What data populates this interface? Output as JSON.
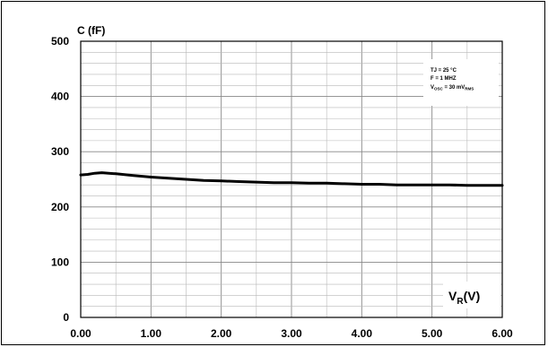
{
  "chart_data": {
    "type": "line",
    "title": "",
    "ylabel": "C (fF)",
    "xlabel": {
      "main": "V",
      "sub": "R",
      "rest": "(V)"
    },
    "xlim": [
      0,
      6
    ],
    "ylim": [
      0,
      500
    ],
    "x_ticks": [
      "0.00",
      "1.00",
      "2.00",
      "3.00",
      "4.00",
      "5.00",
      "6.00"
    ],
    "y_ticks": [
      "0",
      "100",
      "200",
      "300",
      "400",
      "500"
    ],
    "grid": true,
    "legend": {
      "placement": "top-right",
      "lines": [
        {
          "text": "TJ = 25 °C"
        },
        {
          "text": "F = 1 MHZ"
        },
        {
          "main": "V",
          "sub": "OSC",
          "mid": " = 30 mV",
          "sub2": "RMS"
        }
      ]
    },
    "series": [
      {
        "color": "#000000",
        "x": [
          0.0,
          0.1,
          0.2,
          0.3,
          0.4,
          0.5,
          0.75,
          1.0,
          1.25,
          1.5,
          1.75,
          2.0,
          2.25,
          2.5,
          2.75,
          3.0,
          3.25,
          3.5,
          3.75,
          4.0,
          4.25,
          4.5,
          4.75,
          5.0,
          5.25,
          5.5,
          5.75,
          6.0
        ],
        "y": [
          258,
          259,
          261,
          262,
          261,
          260,
          257,
          254,
          252,
          250,
          248,
          247,
          246,
          245,
          244,
          244,
          243,
          243,
          242,
          241,
          241,
          240,
          240,
          240,
          240,
          239,
          239,
          239
        ]
      }
    ]
  }
}
